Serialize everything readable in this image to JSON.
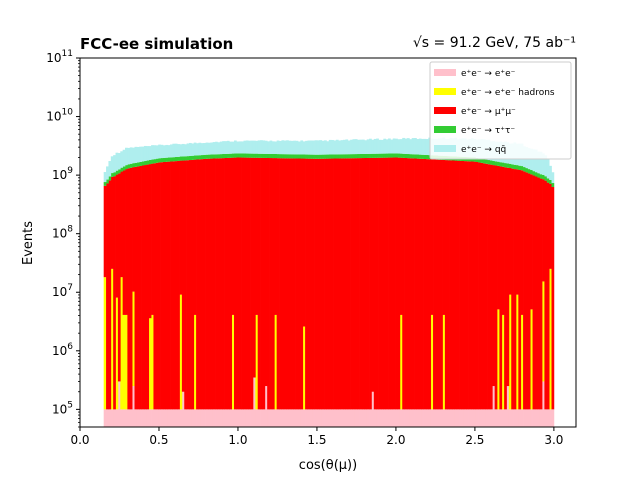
{
  "chart_data": {
    "type": "bar",
    "stacked": true,
    "title_left": "FCC-ee simulation",
    "title_right": "√s = 91.2 GeV, 75 ab⁻¹",
    "xlabel": "cos(θ(μ))",
    "ylabel": "Events",
    "xlim": [
      0.0,
      3.14
    ],
    "ylim": [
      50000,
      100000000000
    ],
    "yscale": "log",
    "grid": false,
    "legend_placement": "top-right",
    "x_ticks": [
      0.0,
      0.5,
      1.0,
      1.5,
      2.0,
      2.5,
      3.0
    ],
    "x_tick_labels": [
      "0.0",
      "0.5",
      "1.0",
      "1.5",
      "2.0",
      "2.5",
      "3.0"
    ],
    "y_ticks": [
      100000,
      1000000,
      10000000,
      100000000,
      1000000000,
      10000000000,
      100000000000
    ],
    "y_tick_labels": [
      {
        "base": "10",
        "exp": "5"
      },
      {
        "base": "10",
        "exp": "6"
      },
      {
        "base": "10",
        "exp": "7"
      },
      {
        "base": "10",
        "exp": "8"
      },
      {
        "base": "10",
        "exp": "9"
      },
      {
        "base": "10",
        "exp": "10"
      },
      {
        "base": "10",
        "exp": "11"
      }
    ],
    "bin_range": [
      0.15,
      3.0
    ],
    "bin_width": 0.015,
    "series": [
      {
        "name": "e⁺e⁻ → e⁺e⁻",
        "color": "#ffc0cb",
        "baseline": 100000,
        "spikes": [
          {
            "x": 0.25,
            "value": 300000
          },
          {
            "x": 0.33,
            "value": 250000
          },
          {
            "x": 0.65,
            "value": 200000
          },
          {
            "x": 1.1,
            "value": 350000
          },
          {
            "x": 1.18,
            "value": 250000
          },
          {
            "x": 1.65,
            "value": 200000
          },
          {
            "x": 1.85,
            "value": 200000
          },
          {
            "x": 2.62,
            "value": 250000
          },
          {
            "x": 2.7,
            "value": 250000
          },
          {
            "x": 2.93,
            "value": 300000
          }
        ]
      },
      {
        "name": "e⁺e⁻ → e⁺e⁻ hadrons",
        "color": "#ffff00",
        "baseline": 0,
        "spikes": [
          {
            "x": 0.16,
            "value": 18000000
          },
          {
            "x": 0.2,
            "value": 25000000
          },
          {
            "x": 0.23,
            "value": 8000000
          },
          {
            "x": 0.26,
            "value": 18000000
          },
          {
            "x": 0.28,
            "value": 4000000
          },
          {
            "x": 0.3,
            "value": 4000000
          },
          {
            "x": 0.33,
            "value": 10000000
          },
          {
            "x": 0.36,
            "value": 4000000
          },
          {
            "x": 0.44,
            "value": 3500000
          },
          {
            "x": 0.46,
            "value": 4000000
          },
          {
            "x": 0.64,
            "value": 9000000
          },
          {
            "x": 0.73,
            "value": 4000000
          },
          {
            "x": 0.97,
            "value": 4000000
          },
          {
            "x": 1.12,
            "value": 4000000
          },
          {
            "x": 1.24,
            "value": 4000000
          },
          {
            "x": 1.42,
            "value": 2500000
          },
          {
            "x": 2.03,
            "value": 4000000
          },
          {
            "x": 2.23,
            "value": 4000000
          },
          {
            "x": 2.3,
            "value": 4000000
          },
          {
            "x": 2.64,
            "value": 5000000
          },
          {
            "x": 2.68,
            "value": 4000000
          },
          {
            "x": 2.72,
            "value": 9000000
          },
          {
            "x": 2.76,
            "value": 9000000
          },
          {
            "x": 2.8,
            "value": 4000000
          },
          {
            "x": 2.86,
            "value": 5000000
          },
          {
            "x": 2.93,
            "value": 15000000
          },
          {
            "x": 2.97,
            "value": 25000000
          }
        ]
      },
      {
        "name": "e⁺e⁻ → μ⁺μ⁻",
        "color": "#ff0000",
        "profile": [
          [
            0.15,
            600000000
          ],
          [
            0.2,
            900000000
          ],
          [
            0.3,
            1300000000
          ],
          [
            0.5,
            1650000000
          ],
          [
            0.8,
            1900000000
          ],
          [
            1.0,
            2000000000
          ],
          [
            1.5,
            1900000000
          ],
          [
            2.0,
            2000000000
          ],
          [
            2.5,
            1700000000
          ],
          [
            2.8,
            1200000000
          ],
          [
            2.95,
            800000000
          ],
          [
            3.0,
            600000000
          ]
        ]
      },
      {
        "name": "e⁺e⁻ → τ⁺τ⁻",
        "color": "#33cc33",
        "profile": [
          [
            0.15,
            100000000
          ],
          [
            0.2,
            150000000
          ],
          [
            0.3,
            220000000
          ],
          [
            0.5,
            290000000
          ],
          [
            0.8,
            330000000
          ],
          [
            1.0,
            350000000
          ],
          [
            1.5,
            330000000
          ],
          [
            2.0,
            350000000
          ],
          [
            2.5,
            300000000
          ],
          [
            2.8,
            220000000
          ],
          [
            2.95,
            150000000
          ],
          [
            3.0,
            100000000
          ]
        ]
      },
      {
        "name": "e⁺e⁻ → qq̄",
        "color": "#afeeee",
        "profile": [
          [
            0.15,
            300000000
          ],
          [
            0.2,
            1000000000
          ],
          [
            0.3,
            1300000000
          ],
          [
            0.5,
            1200000000
          ],
          [
            0.8,
            1300000000
          ],
          [
            1.0,
            1400000000
          ],
          [
            1.5,
            1500000000
          ],
          [
            2.0,
            1700000000
          ],
          [
            2.3,
            2000000000
          ],
          [
            2.6,
            2000000000
          ],
          [
            2.8,
            1800000000
          ],
          [
            2.95,
            1200000000
          ],
          [
            3.0,
            300000000
          ]
        ]
      }
    ]
  }
}
